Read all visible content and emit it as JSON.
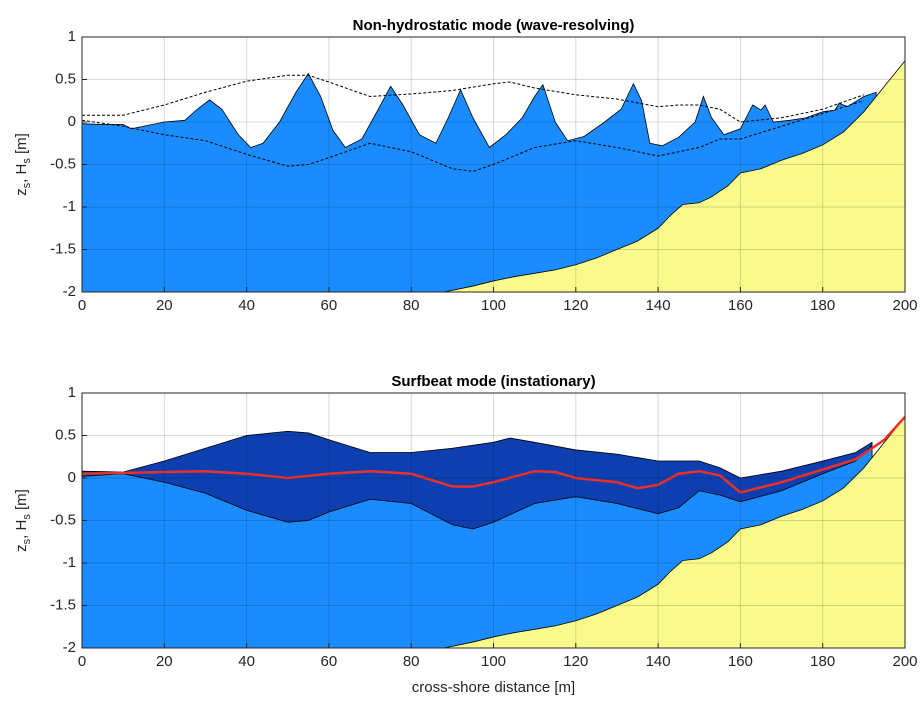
{
  "chart_data": [
    {
      "type": "area",
      "title": "Non-hydrostatic mode (wave-resolving)",
      "ylabel": [
        "z",
        "s",
        ", H",
        "s",
        " [m]"
      ],
      "xlim": [
        0,
        200
      ],
      "xticks": [
        0,
        20,
        40,
        60,
        80,
        100,
        120,
        140,
        160,
        180,
        200
      ],
      "ylim": [
        -2,
        1
      ],
      "yticks": [
        -2,
        -1.5,
        -1,
        -0.5,
        0,
        0.5,
        1
      ],
      "grid": true,
      "series": [
        {
          "style": "area",
          "color": "#1a8cff",
          "x": [
            0,
            5,
            10,
            12,
            15,
            20,
            25,
            28,
            31,
            34,
            38,
            41,
            44,
            48,
            52,
            55,
            58,
            61,
            64,
            68,
            72,
            75,
            78,
            82,
            86,
            89,
            92,
            95,
            99,
            103,
            107,
            110,
            112,
            115,
            118,
            122,
            127,
            131,
            134,
            136,
            138,
            141,
            145,
            149,
            151,
            153,
            156,
            160,
            163,
            165,
            166,
            168,
            172,
            176,
            180,
            183,
            184,
            186,
            190,
            193
          ],
          "values": [
            -0.02,
            -0.03,
            -0.03,
            -0.08,
            -0.05,
            0.0,
            0.02,
            0.15,
            0.26,
            0.15,
            -0.15,
            -0.3,
            -0.25,
            0.0,
            0.35,
            0.57,
            0.3,
            -0.1,
            -0.3,
            -0.2,
            0.15,
            0.42,
            0.2,
            -0.15,
            -0.25,
            0.05,
            0.38,
            0.05,
            -0.3,
            -0.15,
            0.05,
            0.3,
            0.44,
            0.0,
            -0.22,
            -0.17,
            0.0,
            0.15,
            0.45,
            0.25,
            -0.25,
            -0.28,
            -0.18,
            0.0,
            0.3,
            0.05,
            -0.15,
            -0.08,
            0.2,
            0.14,
            0.2,
            0.0,
            0.02,
            0.05,
            0.12,
            0.14,
            0.22,
            0.18,
            0.3,
            0.35
          ]
        },
        {
          "style": "area",
          "color": "#fafa8c",
          "x": [
            88,
            95,
            100,
            105,
            110,
            115,
            120,
            125,
            130,
            135,
            140,
            143,
            146,
            150,
            153,
            157,
            160,
            165,
            170,
            175,
            180,
            185,
            190,
            195,
            200
          ],
          "values": [
            -2,
            -1.93,
            -1.87,
            -1.82,
            -1.78,
            -1.74,
            -1.68,
            -1.6,
            -1.5,
            -1.4,
            -1.25,
            -1.1,
            -0.97,
            -0.95,
            -0.88,
            -0.75,
            -0.6,
            -0.55,
            -0.45,
            -0.37,
            -0.27,
            -0.12,
            0.12,
            0.42,
            0.72
          ]
        },
        {
          "style": "dashed",
          "color": "#000000",
          "x": [
            0,
            10,
            20,
            30,
            40,
            50,
            55,
            60,
            70,
            80,
            90,
            100,
            104,
            110,
            120,
            130,
            140,
            145,
            150,
            155,
            160,
            170,
            180,
            190
          ],
          "values": [
            0.08,
            0.08,
            0.2,
            0.35,
            0.48,
            0.55,
            0.55,
            0.47,
            0.3,
            0.33,
            0.37,
            0.45,
            0.47,
            0.4,
            0.32,
            0.27,
            0.18,
            0.2,
            0.2,
            0.15,
            0.0,
            0.05,
            0.15,
            0.32
          ]
        },
        {
          "style": "dashed",
          "color": "#000000",
          "x": [
            0,
            10,
            20,
            30,
            40,
            50,
            55,
            60,
            70,
            80,
            90,
            95,
            100,
            110,
            120,
            130,
            140,
            150,
            155,
            160,
            170,
            180,
            190
          ],
          "values": [
            0.02,
            -0.05,
            -0.15,
            -0.22,
            -0.38,
            -0.52,
            -0.5,
            -0.42,
            -0.25,
            -0.35,
            -0.55,
            -0.58,
            -0.5,
            -0.3,
            -0.22,
            -0.3,
            -0.4,
            -0.3,
            -0.2,
            -0.2,
            -0.05,
            0.1,
            0.25
          ]
        }
      ]
    },
    {
      "type": "area",
      "title": "Surfbeat mode (instationary)",
      "ylabel": [
        "z",
        "s",
        ", H",
        "s",
        " [m]"
      ],
      "xlabel": "cross-shore distance [m]",
      "xlim": [
        0,
        200
      ],
      "xticks": [
        0,
        20,
        40,
        60,
        80,
        100,
        120,
        140,
        160,
        180,
        200
      ],
      "ylim": [
        -2,
        1
      ],
      "yticks": [
        -2,
        -1.5,
        -1,
        -0.5,
        0,
        0.5,
        1
      ],
      "grid": true,
      "series": [
        {
          "style": "area",
          "color": "#0d3fb0",
          "x": [
            0,
            10,
            20,
            30,
            40,
            50,
            55,
            60,
            70,
            80,
            90,
            100,
            104,
            110,
            120,
            130,
            140,
            150,
            155,
            160,
            170,
            180,
            188,
            192
          ],
          "values": [
            0.08,
            0.07,
            0.2,
            0.35,
            0.5,
            0.55,
            0.53,
            0.45,
            0.3,
            0.3,
            0.35,
            0.42,
            0.47,
            0.42,
            0.33,
            0.28,
            0.2,
            0.2,
            0.12,
            0.0,
            0.08,
            0.2,
            0.3,
            0.42
          ]
        },
        {
          "style": "area",
          "color": "#1a8cff",
          "x": [
            0,
            10,
            20,
            30,
            40,
            50,
            55,
            60,
            70,
            80,
            90,
            95,
            100,
            110,
            120,
            130,
            140,
            145,
            150,
            155,
            160,
            170,
            180,
            188,
            192
          ],
          "values": [
            0.02,
            0.05,
            -0.05,
            -0.18,
            -0.38,
            -0.52,
            -0.5,
            -0.4,
            -0.25,
            -0.3,
            -0.55,
            -0.6,
            -0.52,
            -0.3,
            -0.22,
            -0.3,
            -0.42,
            -0.35,
            -0.15,
            -0.2,
            -0.28,
            -0.15,
            0.05,
            0.2,
            0.38
          ]
        },
        {
          "style": "area",
          "color": "#fafa8c",
          "x": [
            88,
            95,
            100,
            105,
            110,
            115,
            120,
            125,
            130,
            135,
            140,
            143,
            146,
            150,
            153,
            157,
            160,
            165,
            170,
            175,
            180,
            185,
            190,
            195,
            200
          ],
          "values": [
            -2,
            -1.93,
            -1.87,
            -1.82,
            -1.78,
            -1.74,
            -1.68,
            -1.6,
            -1.5,
            -1.4,
            -1.25,
            -1.1,
            -0.97,
            -0.95,
            -0.88,
            -0.75,
            -0.6,
            -0.55,
            -0.45,
            -0.37,
            -0.27,
            -0.12,
            0.12,
            0.42,
            0.72
          ]
        },
        {
          "style": "line",
          "color": "#e8302a",
          "x": [
            0,
            10,
            20,
            30,
            40,
            50,
            60,
            70,
            80,
            90,
            95,
            100,
            110,
            115,
            120,
            130,
            135,
            140,
            145,
            150,
            155,
            160,
            170,
            180,
            188,
            195,
            200
          ],
          "values": [
            0.05,
            0.06,
            0.07,
            0.08,
            0.05,
            0.0,
            0.05,
            0.08,
            0.05,
            -0.1,
            -0.1,
            -0.05,
            0.08,
            0.07,
            0.0,
            -0.05,
            -0.12,
            -0.08,
            0.05,
            0.08,
            0.03,
            -0.17,
            -0.05,
            0.1,
            0.22,
            0.45,
            0.72
          ]
        }
      ]
    }
  ]
}
